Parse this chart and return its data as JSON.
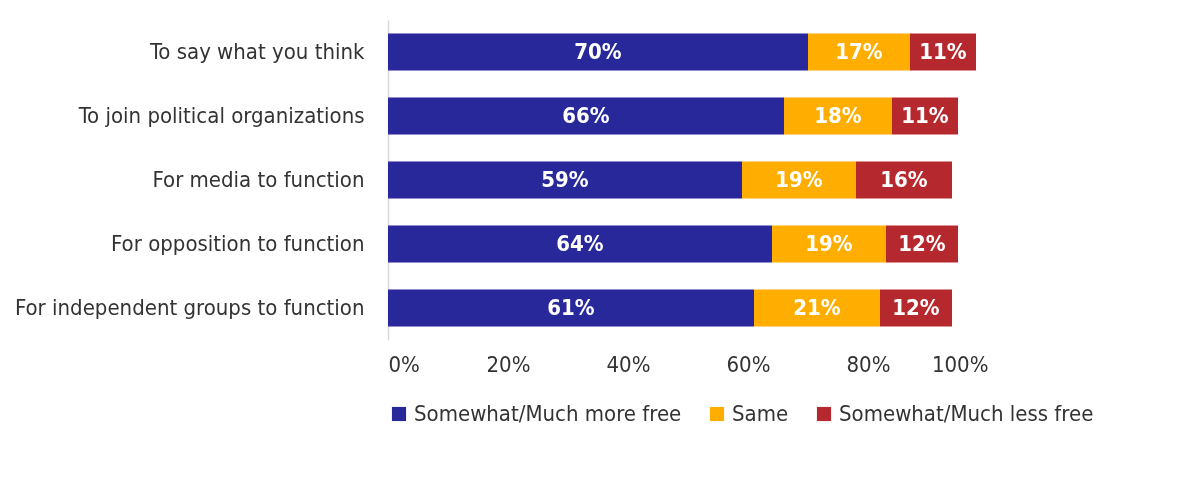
{
  "chart_data": {
    "type": "bar",
    "orientation": "horizontal",
    "stacked": true,
    "categories": [
      "To say what you think",
      "To join political organizations",
      "For media to function",
      "For opposition to function",
      "For independent groups to function"
    ],
    "series": [
      {
        "name": "Somewhat/Much more free",
        "color": "#28289a",
        "values": [
          70,
          66,
          59,
          64,
          61
        ],
        "value_labels": [
          "70%",
          "66%",
          "59%",
          "64%",
          "61%"
        ]
      },
      {
        "name": "Same",
        "color": "#ffae00",
        "values": [
          17,
          18,
          19,
          19,
          21
        ],
        "value_labels": [
          "17%",
          "18%",
          "19%",
          "19%",
          "21%"
        ]
      },
      {
        "name": "Somewhat/Much less free",
        "color": "#b5282e",
        "values": [
          11,
          11,
          16,
          12,
          12
        ],
        "value_labels": [
          "11%",
          "11%",
          "16%",
          "12%",
          "12%"
        ]
      }
    ],
    "xlim": [
      0,
      100
    ],
    "xticks": [
      {
        "value": 0,
        "label": "0%"
      },
      {
        "value": 20,
        "label": "20%"
      },
      {
        "value": 40,
        "label": "40%"
      },
      {
        "value": 60,
        "label": "60%"
      },
      {
        "value": 80,
        "label": "80%"
      },
      {
        "value": 100,
        "label": "100%"
      }
    ],
    "grid": false,
    "legend": "bottom"
  }
}
